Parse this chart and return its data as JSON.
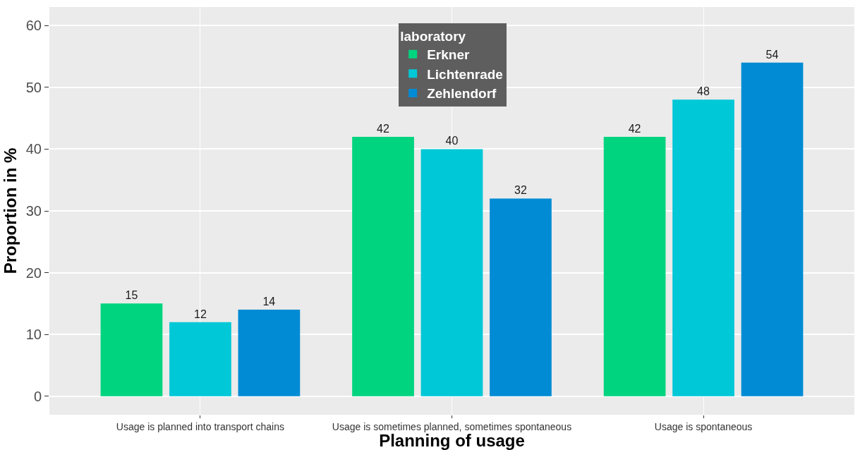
{
  "chart_data": {
    "type": "bar",
    "xlabel": "Planning of usage",
    "ylabel": "Proportion in %",
    "legend_title": "laboratory",
    "categories": [
      "Usage is planned into transport chains",
      "Usage is sometimes planned, sometimes spontaneous",
      "Usage is spontaneous"
    ],
    "series": [
      {
        "name": "Erkner",
        "color": "#00d47f",
        "values": [
          15,
          42,
          42
        ]
      },
      {
        "name": "Lichtenrade",
        "color": "#00c8d7",
        "values": [
          12,
          40,
          48
        ]
      },
      {
        "name": "Zehlendorf",
        "color": "#008bd4",
        "values": [
          14,
          32,
          54
        ]
      }
    ],
    "ylim": [
      -3,
      63
    ],
    "yticks": [
      0,
      10,
      20,
      30,
      40,
      50,
      60
    ],
    "grid": true,
    "legend": "top",
    "data_labels": true
  }
}
